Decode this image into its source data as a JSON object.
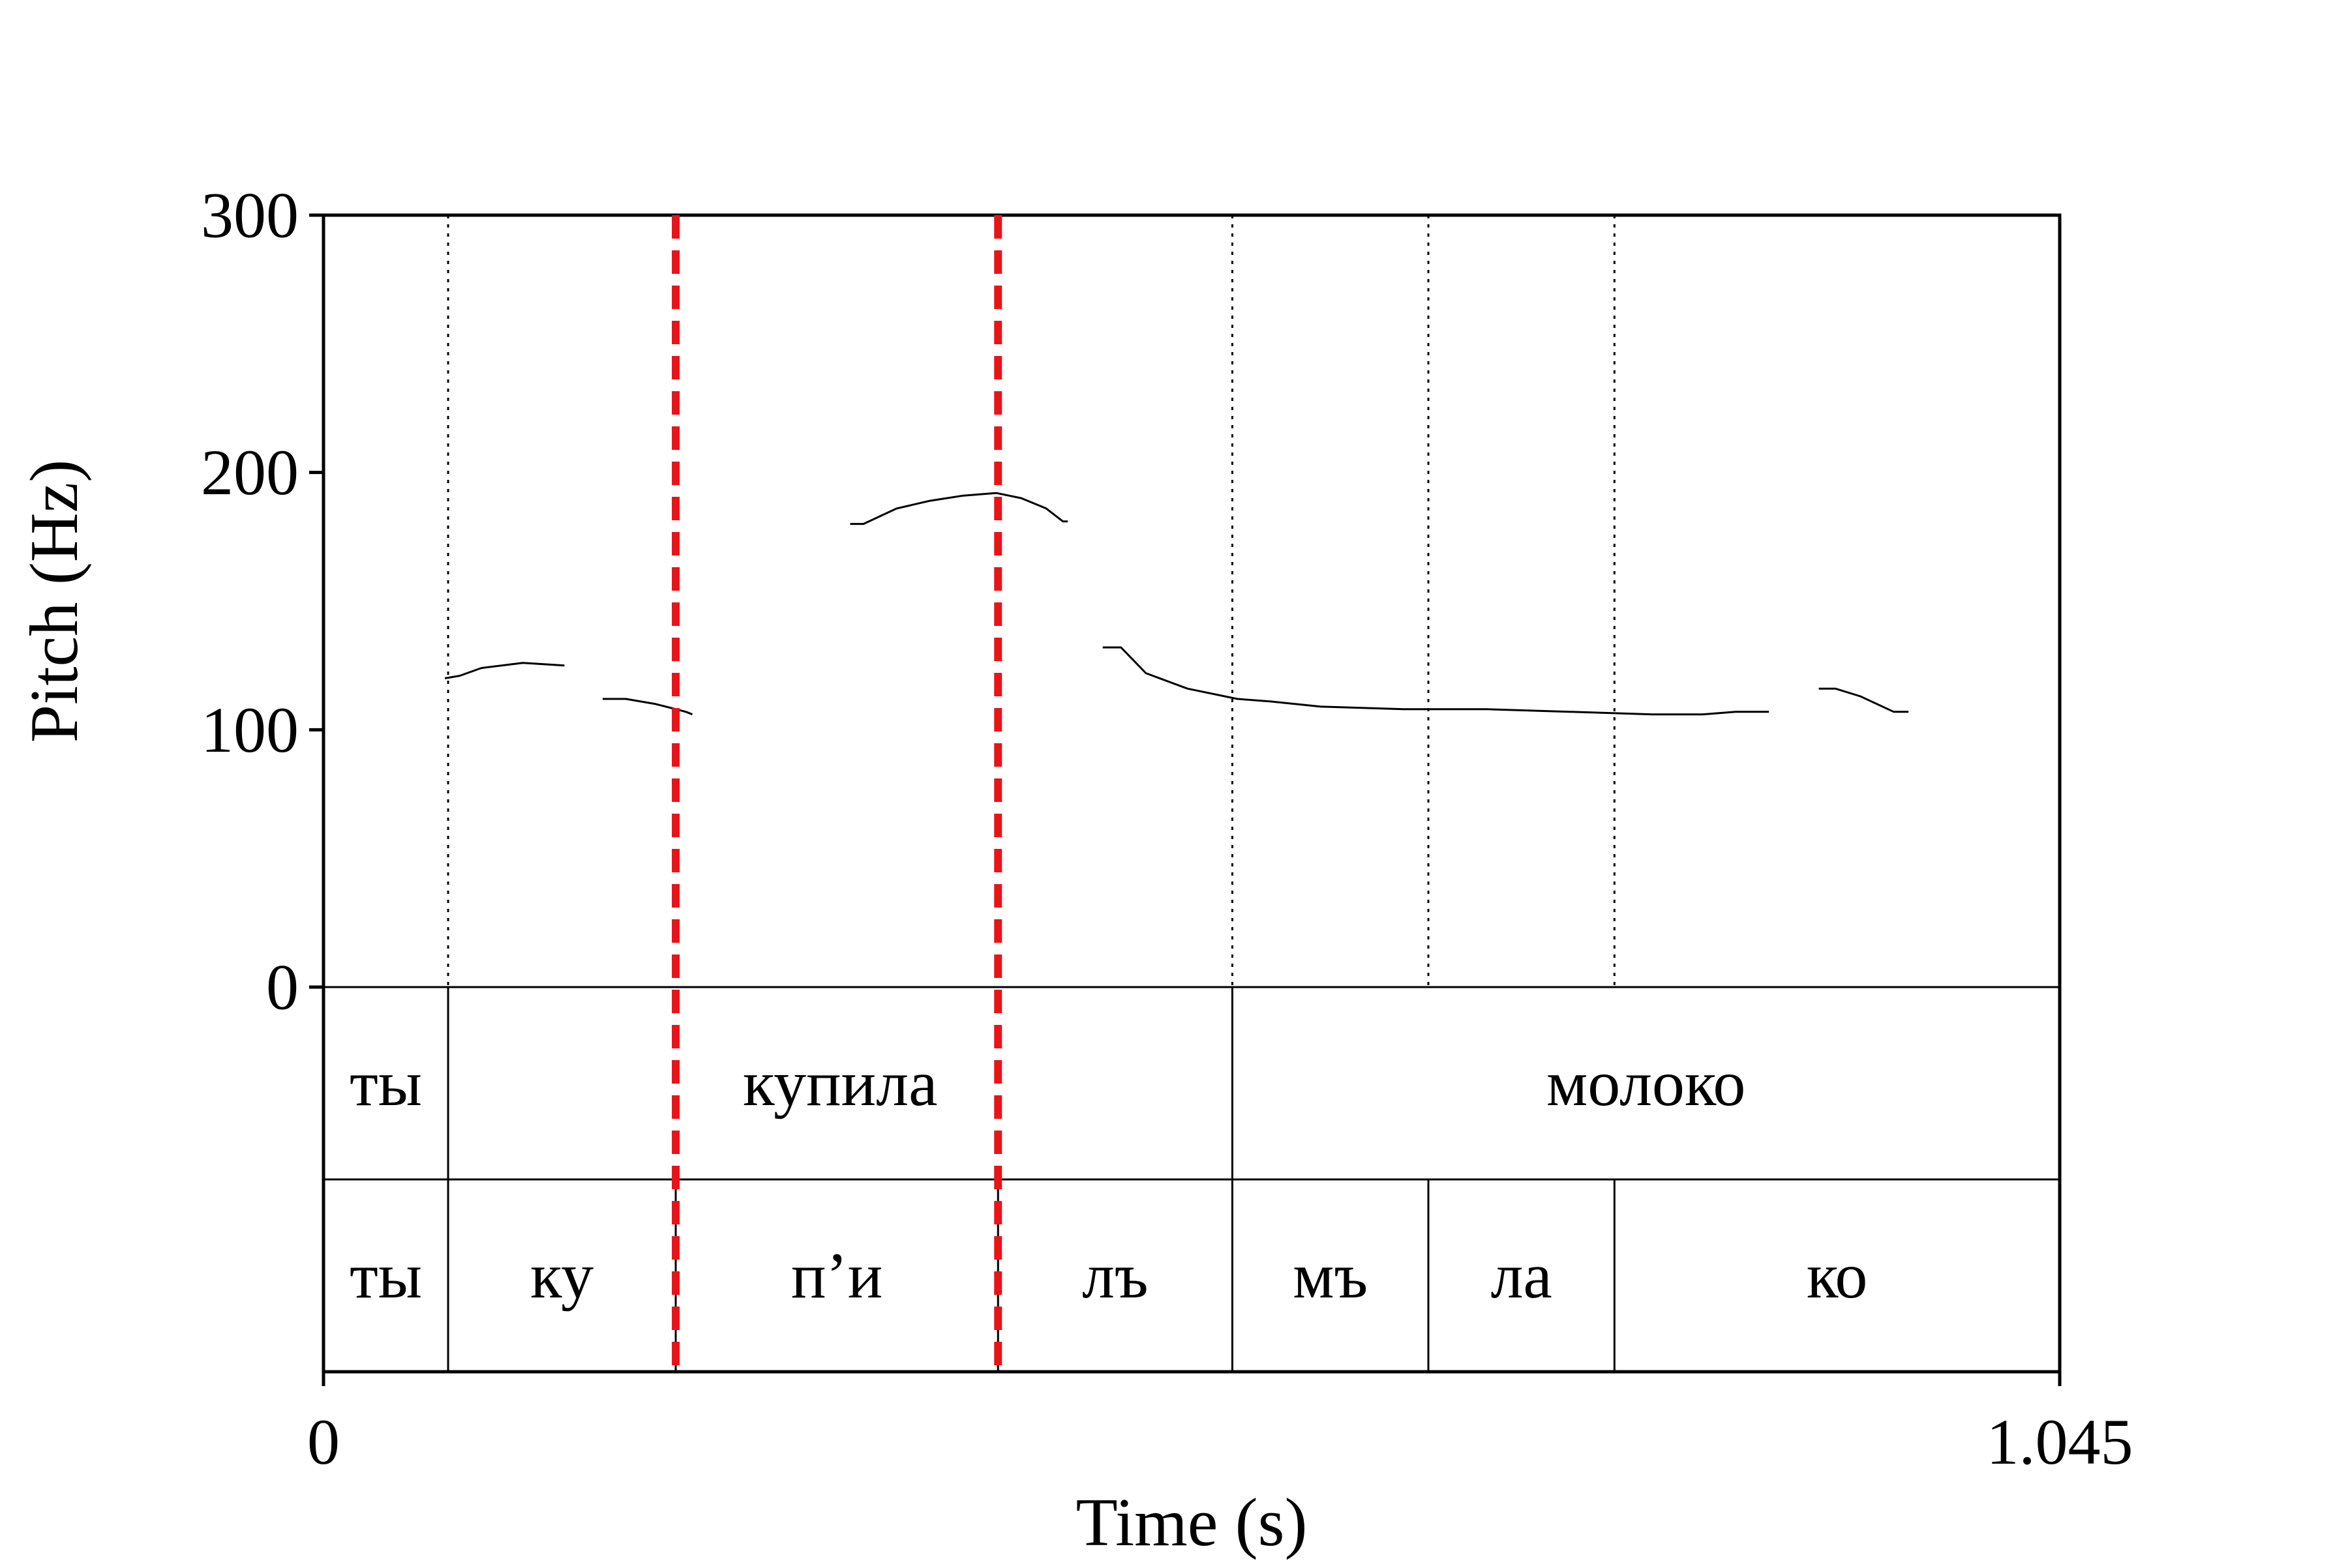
{
  "chart_data": {
    "type": "line",
    "xlabel": "Time (s)",
    "ylabel": "Pitch (Hz)",
    "xlim": [
      0,
      1.045
    ],
    "ylim": [
      0,
      300
    ],
    "x_tick_labels": [
      "0",
      "1.045"
    ],
    "y_tick_labels": [
      "0",
      "100",
      "200",
      "300"
    ],
    "grid": false,
    "series": [
      {
        "segments": [
          [
            [
              0.073,
              120
            ],
            [
              0.082,
              121
            ],
            [
              0.095,
              124
            ],
            [
              0.12,
              126
            ],
            [
              0.145,
              125
            ]
          ],
          [
            [
              0.168,
              112
            ],
            [
              0.182,
              112
            ],
            [
              0.2,
              110
            ],
            [
              0.218,
              107
            ],
            [
              0.222,
              106
            ]
          ],
          [
            [
              0.317,
              180
            ],
            [
              0.325,
              180
            ],
            [
              0.345,
              186
            ],
            [
              0.365,
              189
            ],
            [
              0.385,
              191
            ],
            [
              0.405,
              192
            ],
            [
              0.42,
              190
            ],
            [
              0.435,
              186
            ],
            [
              0.445,
              181
            ],
            [
              0.448,
              181
            ]
          ],
          [
            [
              0.469,
              132
            ],
            [
              0.48,
              132
            ],
            [
              0.495,
              122
            ],
            [
              0.52,
              116
            ],
            [
              0.55,
              112
            ],
            [
              0.57,
              111
            ],
            [
              0.6,
              109
            ],
            [
              0.65,
              108
            ],
            [
              0.7,
              108
            ],
            [
              0.75,
              107
            ],
            [
              0.8,
              106
            ],
            [
              0.83,
              106
            ],
            [
              0.85,
              107
            ],
            [
              0.87,
              107
            ]
          ],
          [
            [
              0.9,
              116
            ],
            [
              0.91,
              116
            ],
            [
              0.925,
              113
            ],
            [
              0.945,
              107
            ],
            [
              0.954,
              107
            ]
          ]
        ]
      }
    ],
    "boundaries": {
      "dotted": [
        0.075,
        0.547,
        0.665,
        0.777
      ],
      "highlighted": [
        0.212,
        0.406
      ],
      "highlight_color": "#e8141a"
    },
    "tiers": [
      {
        "intervals": [
          {
            "start": 0.0,
            "end": 0.075,
            "label": "ты"
          },
          {
            "start": 0.075,
            "end": 0.547,
            "label": "купила"
          },
          {
            "start": 0.547,
            "end": 1.045,
            "label": "молоко"
          }
        ]
      },
      {
        "intervals": [
          {
            "start": 0.0,
            "end": 0.075,
            "label": "ты"
          },
          {
            "start": 0.075,
            "end": 0.212,
            "label": "ку"
          },
          {
            "start": 0.212,
            "end": 0.406,
            "label": "п’и"
          },
          {
            "start": 0.406,
            "end": 0.547,
            "label": "лъ"
          },
          {
            "start": 0.547,
            "end": 0.665,
            "label": "мъ"
          },
          {
            "start": 0.665,
            "end": 0.777,
            "label": "ла"
          },
          {
            "start": 0.777,
            "end": 1.045,
            "label": "ко"
          }
        ]
      }
    ]
  }
}
